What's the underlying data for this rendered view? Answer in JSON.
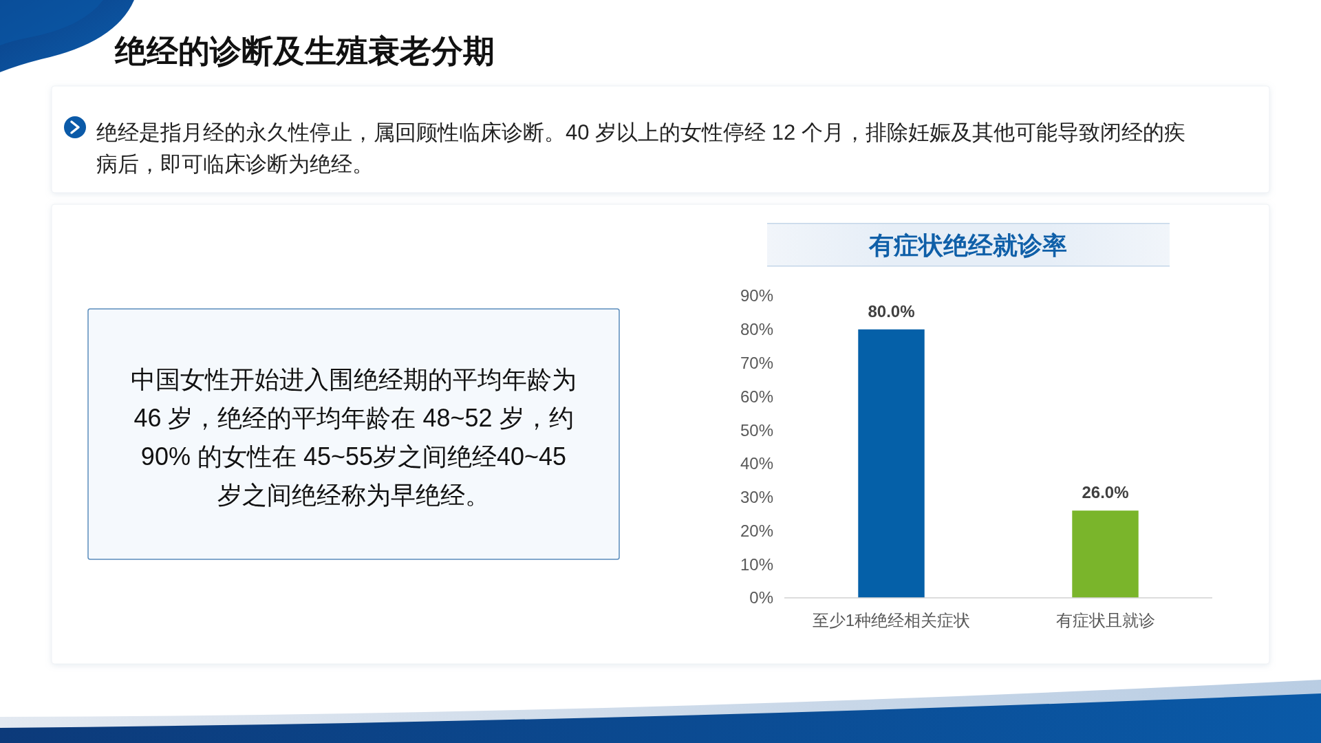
{
  "chart_data": {
    "type": "bar",
    "title": "有症状绝经就诊率",
    "categories": [
      "至少1种绝经相关症状",
      "有症状且就诊"
    ],
    "values": [
      80.0,
      26.0
    ],
    "colors": [
      "#0560a8",
      "#7ab52b"
    ],
    "ylim": [
      0,
      90
    ],
    "yticks": [
      {
        "value": 0,
        "label": "0%"
      },
      {
        "value": 10,
        "label": "10%"
      },
      {
        "value": 20,
        "label": "20%"
      },
      {
        "value": 30,
        "label": "30%"
      },
      {
        "value": 40,
        "label": "40%"
      },
      {
        "value": 50,
        "label": "50%"
      },
      {
        "value": 60,
        "label": "60%"
      },
      {
        "value": 70,
        "label": "70%"
      },
      {
        "value": 80,
        "label": "80%"
      },
      {
        "value": 90,
        "label": "90%"
      }
    ],
    "value_labels": [
      "80.0%",
      "26.0%"
    ],
    "annotations": [
      "绝经的诊断及生殖衰老分期",
      "绝经是指月经的永久性停止，属回顾性临床诊断。40 岁以上的女性停经 12 个月，排除妊娠及其他可能导致闭经的疾病后，即可临床诊断为绝经。",
      "中国女性开始进入围绝经期的平均年龄为 46 岁，绝经的平均年龄在 48~52 岁，约 90% 的女性在 45~55岁之间绝经40~45 岁之间绝经称为早绝经。"
    ]
  }
}
